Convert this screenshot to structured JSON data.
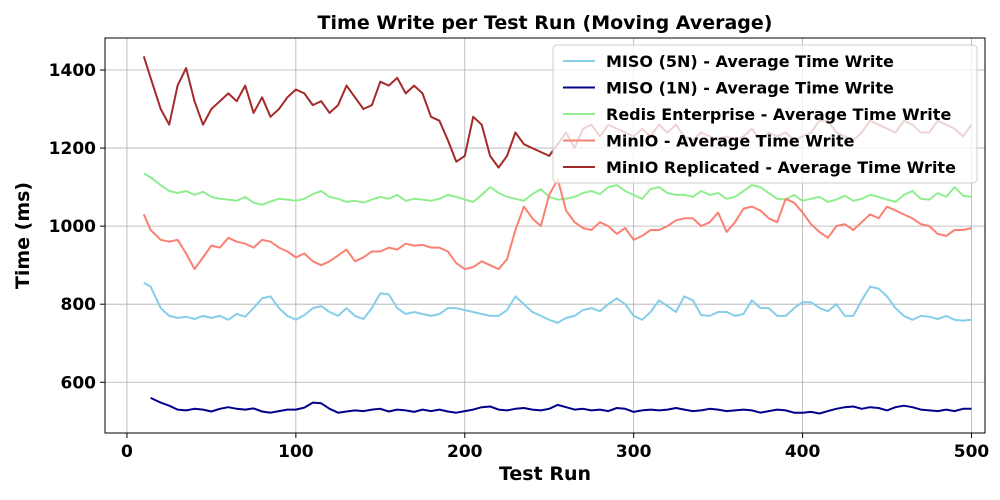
{
  "chart_data": {
    "type": "line",
    "title": "Time Write per Test Run (Moving Average)",
    "xlabel": "Test Run",
    "ylabel": "Time (ms)",
    "xlim": [
      -13,
      508
    ],
    "ylim": [
      470,
      1482
    ],
    "xticks": [
      0,
      100,
      200,
      300,
      400,
      500
    ],
    "yticks": [
      600,
      800,
      1000,
      1200,
      1400
    ],
    "grid": true,
    "legend_position": "top-right",
    "x": [
      10,
      14,
      20,
      25,
      30,
      35,
      40,
      45,
      50,
      55,
      60,
      65,
      70,
      75,
      80,
      85,
      90,
      95,
      100,
      105,
      110,
      115,
      120,
      125,
      130,
      135,
      140,
      145,
      150,
      155,
      160,
      165,
      170,
      175,
      180,
      185,
      190,
      195,
      200,
      205,
      210,
      215,
      220,
      225,
      230,
      235,
      240,
      245,
      250,
      255,
      260,
      265,
      270,
      275,
      280,
      285,
      290,
      295,
      300,
      305,
      310,
      315,
      320,
      325,
      330,
      335,
      340,
      345,
      350,
      355,
      360,
      365,
      370,
      375,
      380,
      385,
      390,
      395,
      400,
      405,
      410,
      415,
      420,
      425,
      430,
      435,
      440,
      445,
      450,
      455,
      460,
      465,
      470,
      475,
      480,
      485,
      490,
      495,
      500
    ],
    "series": [
      {
        "name": "MISO (5N) - Average Time Write",
        "color": "#87ceeb",
        "values": [
          855,
          845,
          790,
          770,
          765,
          768,
          762,
          770,
          765,
          770,
          760,
          775,
          768,
          790,
          815,
          820,
          790,
          770,
          760,
          772,
          790,
          795,
          780,
          770,
          790,
          770,
          762,
          790,
          828,
          825,
          790,
          775,
          780,
          775,
          770,
          775,
          790,
          790,
          785,
          780,
          775,
          770,
          770,
          785,
          820,
          800,
          780,
          770,
          760,
          752,
          765,
          770,
          785,
          790,
          782,
          800,
          815,
          800,
          770,
          760,
          780,
          810,
          795,
          780,
          820,
          810,
          772,
          770,
          780,
          780,
          770,
          775,
          810,
          790,
          790,
          770,
          770,
          790,
          805,
          805,
          790,
          782,
          800,
          770,
          770,
          810,
          845,
          840,
          820,
          790,
          770,
          760,
          770,
          768,
          762,
          770,
          760,
          758,
          760
        ]
      },
      {
        "name": "MISO (1N) - Average Time Write",
        "color": "#00008b",
        "values": [
          null,
          560,
          548,
          540,
          530,
          528,
          532,
          530,
          525,
          532,
          536,
          532,
          530,
          533,
          525,
          522,
          526,
          530,
          530,
          535,
          548,
          546,
          532,
          522,
          525,
          528,
          526,
          530,
          532,
          525,
          530,
          528,
          524,
          530,
          526,
          530,
          525,
          522,
          526,
          530,
          536,
          538,
          530,
          528,
          532,
          534,
          530,
          528,
          532,
          542,
          536,
          530,
          532,
          528,
          530,
          526,
          534,
          532,
          524,
          528,
          530,
          528,
          530,
          534,
          530,
          526,
          528,
          532,
          530,
          526,
          528,
          530,
          528,
          522,
          526,
          530,
          528,
          522,
          522,
          524,
          520,
          526,
          532,
          536,
          538,
          532,
          536,
          534,
          528,
          536,
          540,
          536,
          530,
          528,
          526,
          530,
          526,
          532,
          532
        ]
      },
      {
        "name": "Redis Enterprise - Average Time Write",
        "color": "#90ee90",
        "values": [
          1135,
          1125,
          1105,
          1090,
          1085,
          1090,
          1080,
          1088,
          1075,
          1070,
          1068,
          1065,
          1075,
          1060,
          1055,
          1063,
          1070,
          1068,
          1065,
          1070,
          1082,
          1090,
          1075,
          1070,
          1062,
          1065,
          1060,
          1068,
          1075,
          1070,
          1080,
          1065,
          1070,
          1068,
          1065,
          1070,
          1080,
          1075,
          1068,
          1062,
          1080,
          1100,
          1085,
          1075,
          1070,
          1065,
          1082,
          1095,
          1075,
          1068,
          1070,
          1075,
          1085,
          1090,
          1082,
          1100,
          1105,
          1090,
          1080,
          1070,
          1095,
          1100,
          1085,
          1080,
          1080,
          1075,
          1090,
          1080,
          1085,
          1070,
          1075,
          1090,
          1105,
          1100,
          1085,
          1070,
          1068,
          1080,
          1065,
          1070,
          1075,
          1062,
          1068,
          1078,
          1065,
          1070,
          1080,
          1075,
          1068,
          1062,
          1080,
          1090,
          1070,
          1068,
          1085,
          1075,
          1100,
          1078,
          1075
        ]
      },
      {
        "name": "MinIO - Average Time Write",
        "color": "#fa8072",
        "values": [
          1030,
          990,
          965,
          960,
          965,
          930,
          890,
          920,
          950,
          945,
          970,
          960,
          955,
          945,
          965,
          960,
          945,
          935,
          920,
          930,
          910,
          900,
          910,
          925,
          940,
          910,
          920,
          935,
          935,
          945,
          940,
          955,
          950,
          952,
          945,
          945,
          935,
          905,
          890,
          895,
          910,
          900,
          890,
          915,
          990,
          1050,
          1020,
          1000,
          1080,
          1120,
          1040,
          1010,
          995,
          990,
          1010,
          1000,
          980,
          995,
          965,
          975,
          990,
          990,
          1000,
          1015,
          1020,
          1020,
          1000,
          1010,
          1035,
          985,
          1010,
          1045,
          1050,
          1040,
          1020,
          1010,
          1070,
          1060,
          1035,
          1005,
          985,
          970,
          1000,
          1005,
          990,
          1010,
          1030,
          1020,
          1050,
          1040,
          1030,
          1020,
          1005,
          1000,
          980,
          975,
          990,
          990,
          995
        ]
      },
      {
        "name": "MinIO Replicated - Average Time Write",
        "color": "#a52a2a",
        "values": [
          1435,
          1380,
          1300,
          1260,
          1360,
          1405,
          1320,
          1260,
          1300,
          1320,
          1340,
          1320,
          1360,
          1290,
          1330,
          1280,
          1300,
          1330,
          1350,
          1340,
          1310,
          1320,
          1290,
          1310,
          1360,
          1330,
          1300,
          1310,
          1370,
          1360,
          1380,
          1340,
          1360,
          1340,
          1280,
          1270,
          1220,
          1165,
          1180,
          1280,
          1260,
          1180,
          1150,
          1180,
          1240,
          1210,
          1200,
          1190,
          1180,
          1210,
          1240,
          1200,
          1250,
          1260,
          1230,
          1260,
          1250,
          1240,
          1230,
          1250,
          1230,
          1260,
          1240,
          1260,
          1230,
          1220,
          1240,
          1230,
          1220,
          1230,
          1220,
          1230,
          1250,
          1220,
          1240,
          1230,
          1240,
          1220,
          1230,
          1240,
          1270,
          1270,
          1240,
          1230,
          1220,
          1240,
          1270,
          1260,
          1250,
          1240,
          1270,
          1260,
          1240,
          1240,
          1270,
          1260,
          1250,
          1230,
          1260
        ]
      }
    ]
  }
}
